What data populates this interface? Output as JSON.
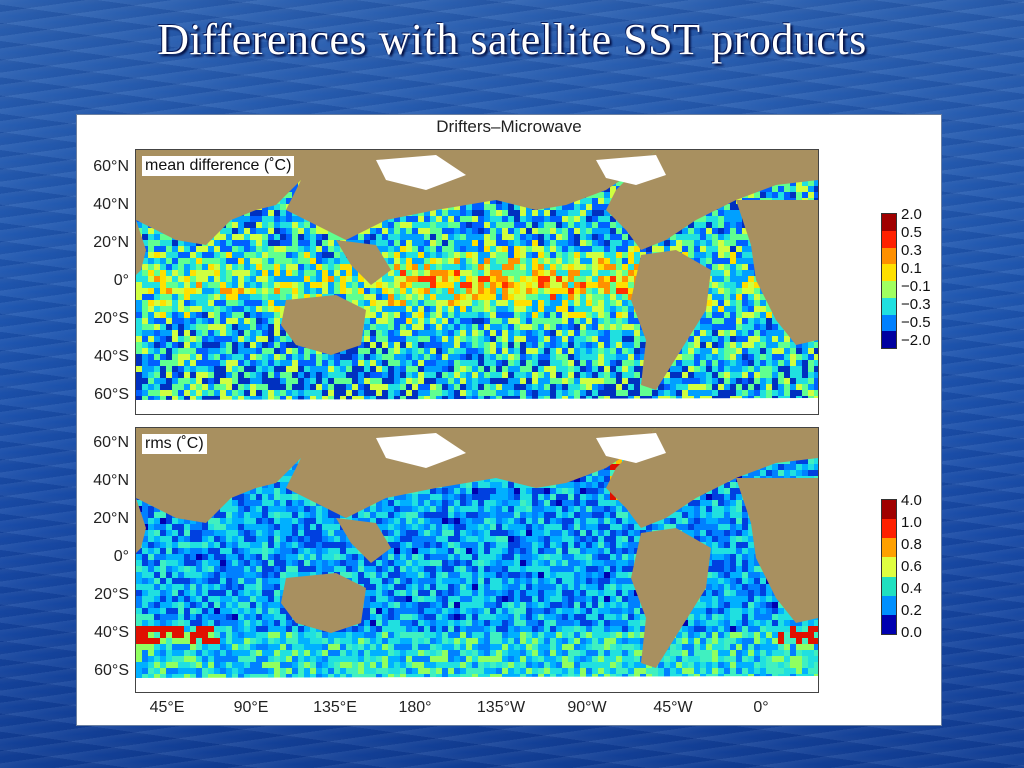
{
  "slide": {
    "title": "Differences with satellite SST products"
  },
  "figure": {
    "title": "Drifters–Microwave",
    "panels": [
      {
        "label": "mean difference (˚C)",
        "colorbar": {
          "labels": [
            "2.0",
            "0.5",
            "0.3",
            "0.1",
            "−0.1",
            "−0.3",
            "−0.5",
            "−2.0"
          ],
          "colors": [
            "#a00000",
            "#ff2000",
            "#ff9000",
            "#ffe000",
            "#a0ff60",
            "#20e0e0",
            "#0080ff",
            "#0000a0"
          ]
        }
      },
      {
        "label": "rms (˚C)",
        "colorbar": {
          "labels": [
            "4.0",
            "1.0",
            "0.8",
            "0.6",
            "0.4",
            "0.2",
            "0.0"
          ],
          "colors": [
            "#a00000",
            "#ff2000",
            "#ffa000",
            "#e0ff40",
            "#20e0c0",
            "#0090ff",
            "#0000b0"
          ]
        }
      }
    ],
    "lat_labels": [
      "60°N",
      "40°N",
      "20°N",
      "0°",
      "20°S",
      "40°S",
      "60°S"
    ],
    "lon_labels": [
      "45°E",
      "90°E",
      "135°E",
      "180°",
      "135°W",
      "90°W",
      "45°W",
      "0°"
    ],
    "land_color": "#a89060"
  }
}
